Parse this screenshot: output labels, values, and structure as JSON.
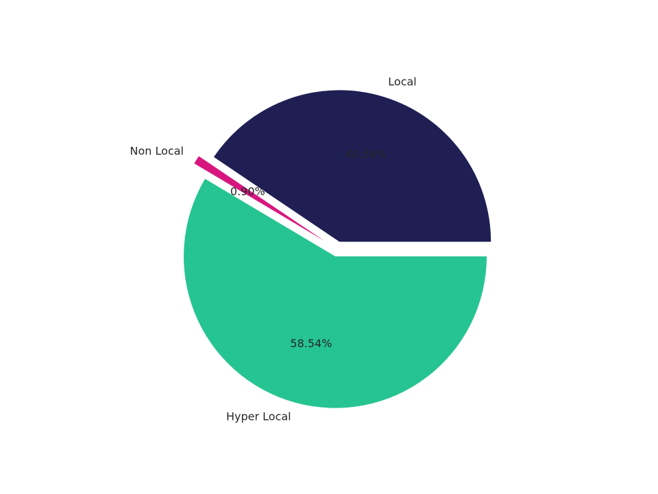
{
  "chart_data": {
    "type": "pie",
    "categories": [
      "Local",
      "Non Local",
      "Hyper Local"
    ],
    "values": [
      40.56,
      0.9,
      58.54
    ],
    "value_labels": [
      "40.56%",
      "0.90%",
      "58.54%"
    ],
    "colors": [
      "#1f1f54",
      "#d7177f",
      "#26c491"
    ],
    "explode": [
      0.05,
      0.1,
      0.05
    ],
    "startangle": 0
  }
}
